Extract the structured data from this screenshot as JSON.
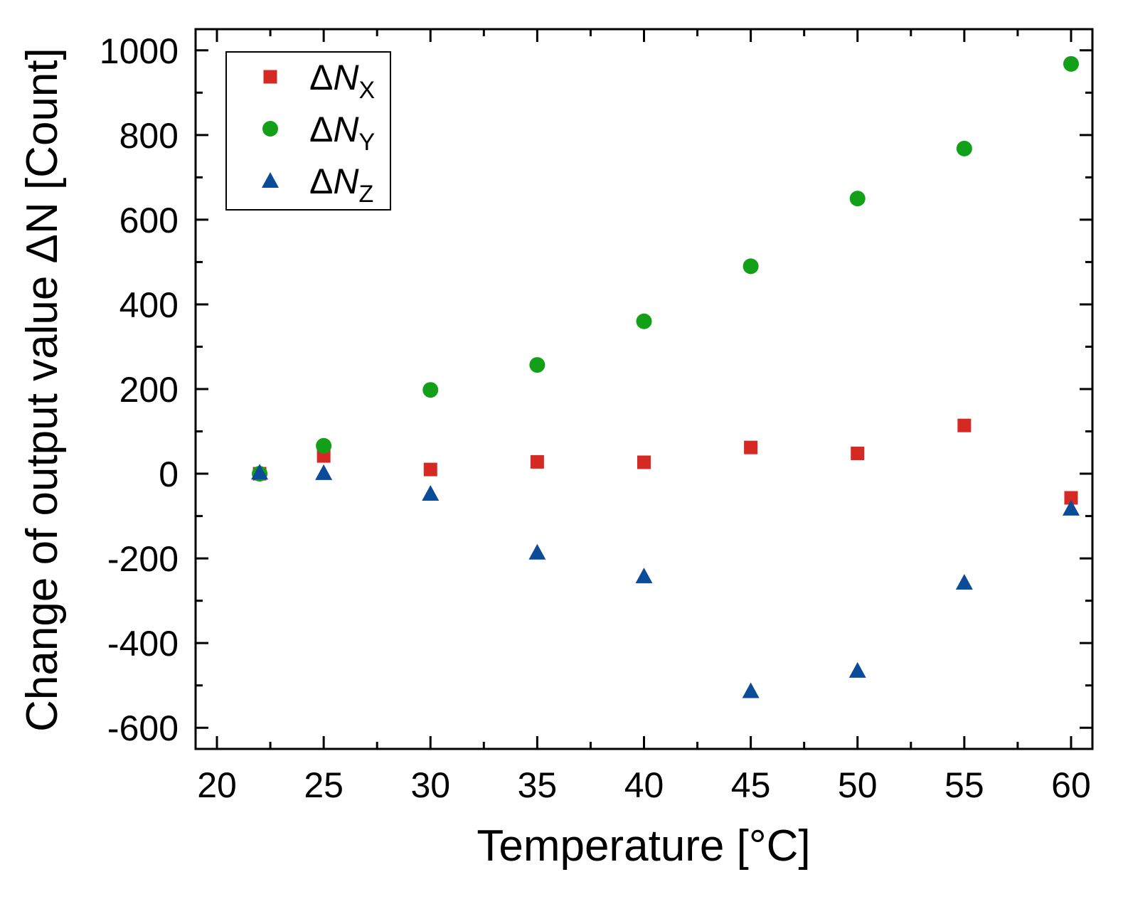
{
  "chart_data": {
    "type": "scatter",
    "title": "",
    "xlabel": "Temperature [°C]",
    "ylabel": "Change of output value ΔN [Count]",
    "xlim": [
      19,
      61
    ],
    "ylim": [
      -650,
      1050
    ],
    "x_ticks": [
      20,
      25,
      30,
      35,
      40,
      45,
      50,
      55,
      60
    ],
    "y_ticks": [
      -600,
      -400,
      -200,
      0,
      200,
      400,
      600,
      800,
      1000
    ],
    "x_tick_labels": [
      "20",
      "25",
      "30",
      "35",
      "40",
      "45",
      "50",
      "55",
      "60"
    ],
    "y_tick_labels": [
      "-600",
      "-400",
      "-200",
      "0",
      "200",
      "400",
      "600",
      "800",
      "1000"
    ],
    "grid": false,
    "legend_position": "top-left",
    "x": [
      22,
      25,
      30,
      35,
      40,
      45,
      50,
      55,
      60
    ],
    "series": [
      {
        "name": "ΔNX",
        "label_main": "ΔN",
        "label_sub": "X",
        "marker": "square",
        "color": "#d42a23",
        "values": [
          0,
          42,
          10,
          28,
          27,
          62,
          48,
          114,
          -57
        ]
      },
      {
        "name": "ΔNY",
        "label_main": "ΔN",
        "label_sub": "Y",
        "marker": "circle",
        "color": "#13a019",
        "values": [
          0,
          66,
          198,
          257,
          360,
          490,
          650,
          768,
          968
        ]
      },
      {
        "name": "ΔNZ",
        "label_main": "ΔN",
        "label_sub": "Z",
        "marker": "triangle",
        "color": "#0b4c99",
        "values": [
          3,
          2,
          -47,
          -186,
          -242,
          -513,
          -465,
          -257,
          -82
        ]
      }
    ]
  }
}
